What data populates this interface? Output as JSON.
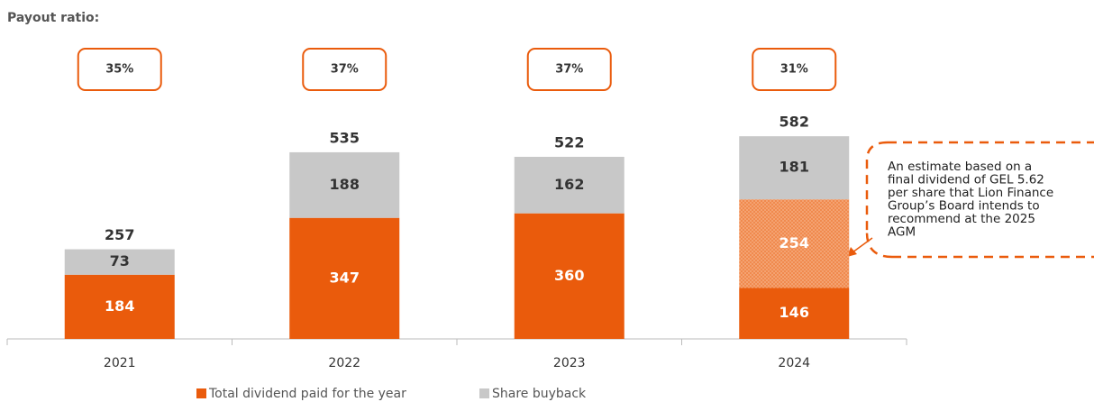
{
  "chart_data": {
    "type": "stacked_bar",
    "payout_ratio": {
      "label": "Payout ratio:",
      "values": [
        35,
        37,
        37,
        31
      ],
      "value_labels": [
        "35%",
        "37%",
        "37%",
        "31%"
      ]
    },
    "categories": [
      "2021",
      "2022",
      "2023",
      "2024"
    ],
    "series": [
      {
        "name": "Total dividend paid for the year",
        "color": "#ea5b0c",
        "values": [
          184,
          347,
          360,
          146
        ]
      },
      {
        "color": "#ea5b0c",
        "pattern": "dots",
        "values": [
          null,
          null,
          null,
          254
        ]
      },
      {
        "name": "Share buyback",
        "color": "#c8c8c8",
        "values": [
          73,
          188,
          162,
          181
        ]
      }
    ],
    "totals": [
      257,
      535,
      522,
      582
    ],
    "annotation": [
      "An estimate based on a",
      "final dividend of GEL 5.62",
      "per share that Lion Finance",
      "Group’s Board intends to",
      "recommend at the 2025",
      "AGM"
    ]
  }
}
